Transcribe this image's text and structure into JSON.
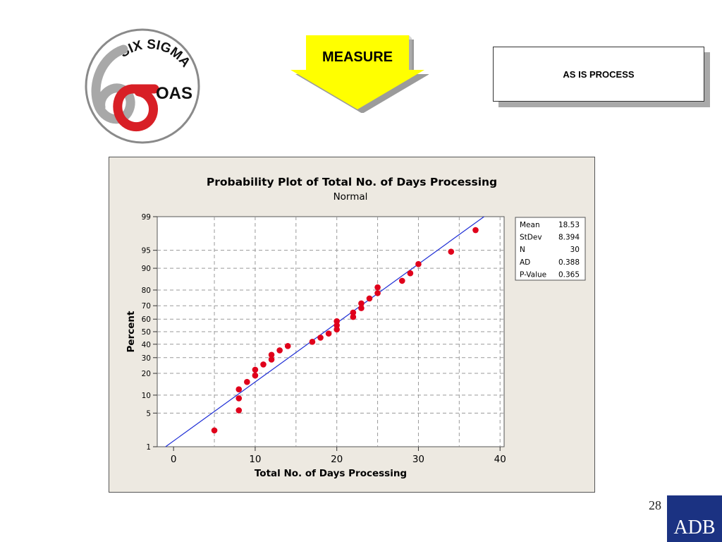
{
  "logo": {
    "top_text": "SIX SIGMA",
    "side_text": "OAS",
    "symbol_name": "six-sigma-symbol",
    "colors": {
      "ring": "#888888",
      "six": "#a8a8a8",
      "sigma": "#d81f26"
    }
  },
  "header": {
    "measure_label": "MEASURE",
    "measure_color": "#ffff00",
    "process_label": "AS IS PROCESS"
  },
  "chart_data": {
    "type": "scatter",
    "title": "Probability Plot of Total No. of Days Processing",
    "subtitle": "Normal",
    "xlabel": "Total No. of Days Processing",
    "ylabel": "Percent",
    "xlim": [
      -2,
      40.5
    ],
    "x_ticks": [
      0,
      10,
      20,
      30,
      40
    ],
    "y_scale": "normal-probability",
    "y_ticks": [
      1,
      5,
      10,
      20,
      30,
      40,
      50,
      60,
      70,
      80,
      90,
      95,
      99
    ],
    "grid": true,
    "point_color": "#e0001b",
    "line_color": "#1f2fd6",
    "fit_line": {
      "mean": 18.53,
      "stdev": 8.394
    },
    "points": [
      {
        "x": 5,
        "y": 2.3
      },
      {
        "x": 8,
        "y": 5.6
      },
      {
        "x": 8,
        "y": 8.9
      },
      {
        "x": 8,
        "y": 12.2
      },
      {
        "x": 9,
        "y": 15.5
      },
      {
        "x": 10,
        "y": 18.8
      },
      {
        "x": 10,
        "y": 22.1
      },
      {
        "x": 11,
        "y": 25.4
      },
      {
        "x": 12,
        "y": 28.7
      },
      {
        "x": 12,
        "y": 32.0
      },
      {
        "x": 13,
        "y": 35.3
      },
      {
        "x": 14,
        "y": 38.6
      },
      {
        "x": 17,
        "y": 41.9
      },
      {
        "x": 18,
        "y": 45.2
      },
      {
        "x": 19,
        "y": 48.5
      },
      {
        "x": 20,
        "y": 51.8
      },
      {
        "x": 20,
        "y": 55.1
      },
      {
        "x": 20,
        "y": 58.4
      },
      {
        "x": 22,
        "y": 61.7
      },
      {
        "x": 22,
        "y": 65.0
      },
      {
        "x": 23,
        "y": 68.3
      },
      {
        "x": 23,
        "y": 71.6
      },
      {
        "x": 24,
        "y": 74.9
      },
      {
        "x": 25,
        "y": 78.2
      },
      {
        "x": 25,
        "y": 81.5
      },
      {
        "x": 28,
        "y": 84.8
      },
      {
        "x": 29,
        "y": 88.1
      },
      {
        "x": 30,
        "y": 91.4
      },
      {
        "x": 34,
        "y": 94.7
      },
      {
        "x": 37,
        "y": 98.0
      }
    ],
    "stats": [
      {
        "label": "Mean",
        "value": "18.53"
      },
      {
        "label": "StDev",
        "value": "8.394"
      },
      {
        "label": "N",
        "value": "30"
      },
      {
        "label": "AD",
        "value": "0.388"
      },
      {
        "label": "P-Value",
        "value": "0.365"
      }
    ]
  },
  "footer": {
    "slide_number": "28",
    "brand": "ADB",
    "brand_color": "#1b3282"
  }
}
